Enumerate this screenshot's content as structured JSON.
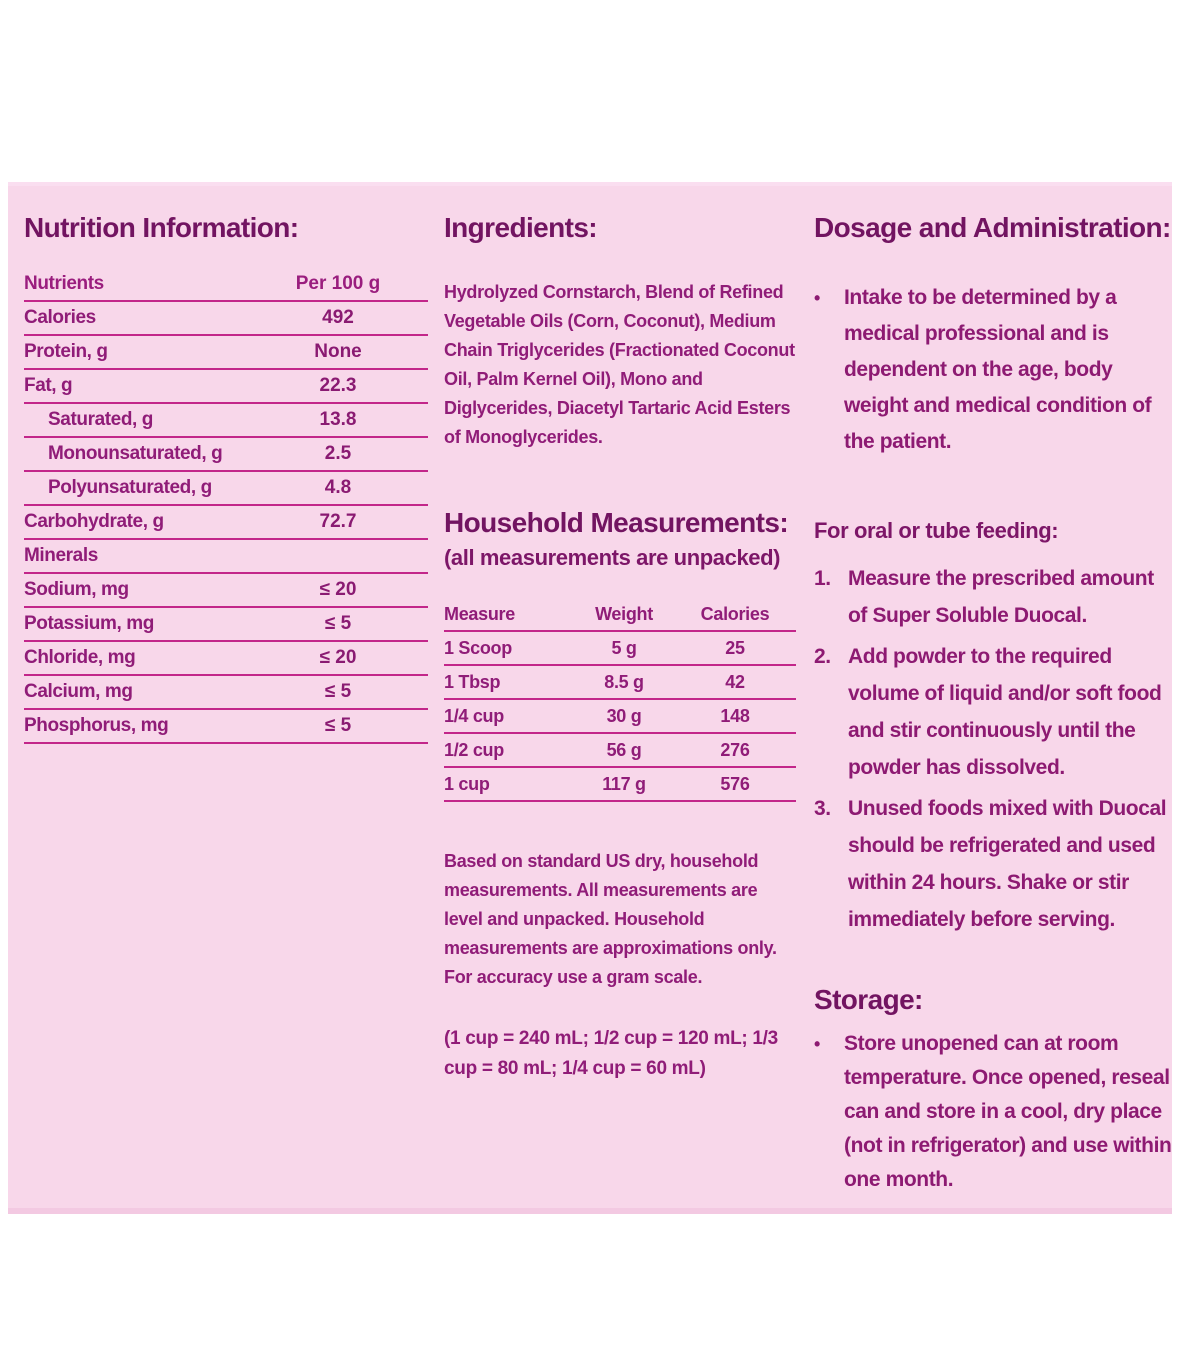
{
  "colors": {
    "panel_background": "#f8d7ea",
    "heading_text": "#721461",
    "body_text": "#901c78",
    "table_rule": "#c3268a"
  },
  "glyphs": {
    "bullet": "•"
  },
  "nutrition": {
    "title": "Nutrition Information:",
    "table": {
      "header": {
        "label": "Nutrients",
        "value": "Per 100 g"
      },
      "rows": [
        {
          "label": "Calories",
          "value": "492"
        },
        {
          "label": "Protein, g",
          "value": "None"
        },
        {
          "label": "Fat, g",
          "value": "22.3"
        },
        {
          "label": "Saturated, g",
          "value": "13.8"
        },
        {
          "label": "Monounsaturated, g",
          "value": "2.5"
        },
        {
          "label": "Polyunsaturated, g",
          "value": "4.8"
        },
        {
          "label": "Carbohydrate, g",
          "value": "72.7"
        },
        {
          "label": "Minerals",
          "value": ""
        },
        {
          "label": "Sodium, mg",
          "value": "≤ 20"
        },
        {
          "label": "Potassium, mg",
          "value": "≤ 5"
        },
        {
          "label": "Chloride, mg",
          "value": "≤ 20"
        },
        {
          "label": "Calcium, mg",
          "value": "≤ 5"
        },
        {
          "label": "Phosphorus, mg",
          "value": "≤ 5"
        }
      ]
    }
  },
  "ingredients": {
    "title": "Ingredients:",
    "body": "Hydrolyzed Cornstarch, Blend of Refined Vegetable Oils (Corn, Coconut), Medium Chain Triglycerides (Fractionated Coconut Oil, Palm Kernel Oil), Mono and Diglycerides, Diacetyl Tartaric Acid Esters of Monoglycerides."
  },
  "household": {
    "title": "Household Measurements:",
    "subtitle": "(all measurements are unpacked)",
    "table": {
      "headers": [
        "Measure",
        "Weight",
        "Calories"
      ],
      "rows": [
        [
          "1 Scoop",
          "5 g",
          "25"
        ],
        [
          "1 Tbsp",
          "8.5 g",
          "42"
        ],
        [
          "1/4 cup",
          "30 g",
          "148"
        ],
        [
          "1/2 cup",
          "56 g",
          "276"
        ],
        [
          "1 cup",
          "117 g",
          "576"
        ]
      ]
    },
    "note": "Based on standard US dry, household measurements. All measurements are level and unpacked. Household measurements are approximations only. For accuracy use a gram scale.",
    "conversions": "(1 cup = 240 mL;  1/2 cup = 120 mL; 1/3 cup = 80 mL;  1/4 cup = 60 mL)"
  },
  "dosage": {
    "title": "Dosage and Administration:",
    "bullet": "Intake to be determined by a medical professional and is dependent on the age, body weight and medical condition of the patient.",
    "feeding_heading": "For oral or tube feeding:",
    "steps": [
      {
        "num": "1.",
        "text": "Measure the prescribed amount of Super Soluble Duocal."
      },
      {
        "num": "2.",
        "text": "Add powder to the required volume of liquid and/or soft food and stir continuously until the powder has dissolved."
      },
      {
        "num": "3.",
        "text": "Unused foods mixed with Duocal should be refrigerated and used within 24 hours.  Shake or stir immediately before serving."
      }
    ]
  },
  "storage": {
    "title": "Storage:",
    "bullet": "Store unopened can at room temperature.  Once opened, reseal can and store in a cool, dry place (not in refrigerator) and use within one month."
  }
}
